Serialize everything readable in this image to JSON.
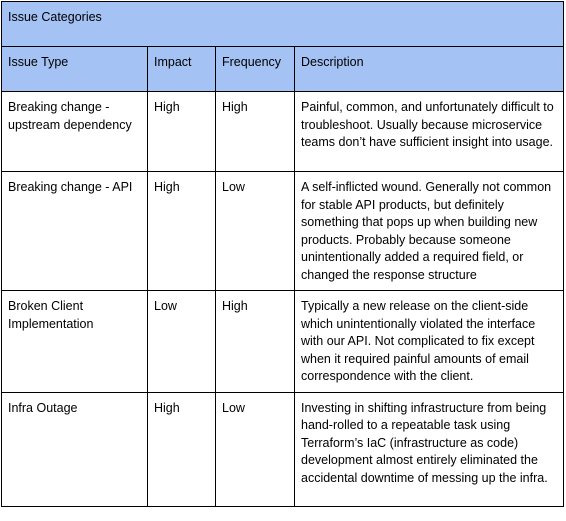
{
  "table": {
    "title": "Issue Categories",
    "headers": {
      "issue_type": "Issue Type",
      "impact": "Impact",
      "frequency": "Frequency",
      "description": "Description"
    },
    "rows": [
      {
        "issue_type": "Breaking change - upstream dependency",
        "impact": "High",
        "frequency": "High",
        "description": "Painful, common, and unfortunately difficult to troubleshoot. Usually because microservice teams don’t have sufficient insight into usage."
      },
      {
        "issue_type": "Breaking change - API",
        "impact": "High",
        "frequency": "Low",
        "description": "A self-inflicted wound. Generally not common for stable API products, but definitely something that pops up when building new products. Probably because someone unintentionally added a required field, or changed the response structure"
      },
      {
        "issue_type": "Broken Client Implementation",
        "impact": "Low",
        "frequency": "High",
        "description": "Typically a new release on the client-side which unintentionally violated the interface with our API. Not complicated to fix except when it required painful amounts of email correspondence with the client."
      },
      {
        "issue_type": "Infra Outage",
        "impact": "High",
        "frequency": "Low",
        "description": "Investing in shifting infrastructure from being hand-rolled to a repeatable task using Terraform’s IaC (infrastructure as code) development almost entirely eliminated the accidental downtime of messing up the infra."
      }
    ]
  },
  "colors": {
    "header_background": "#a4c2f4",
    "border": "#000000",
    "text": "#000000",
    "background": "#ffffff"
  }
}
